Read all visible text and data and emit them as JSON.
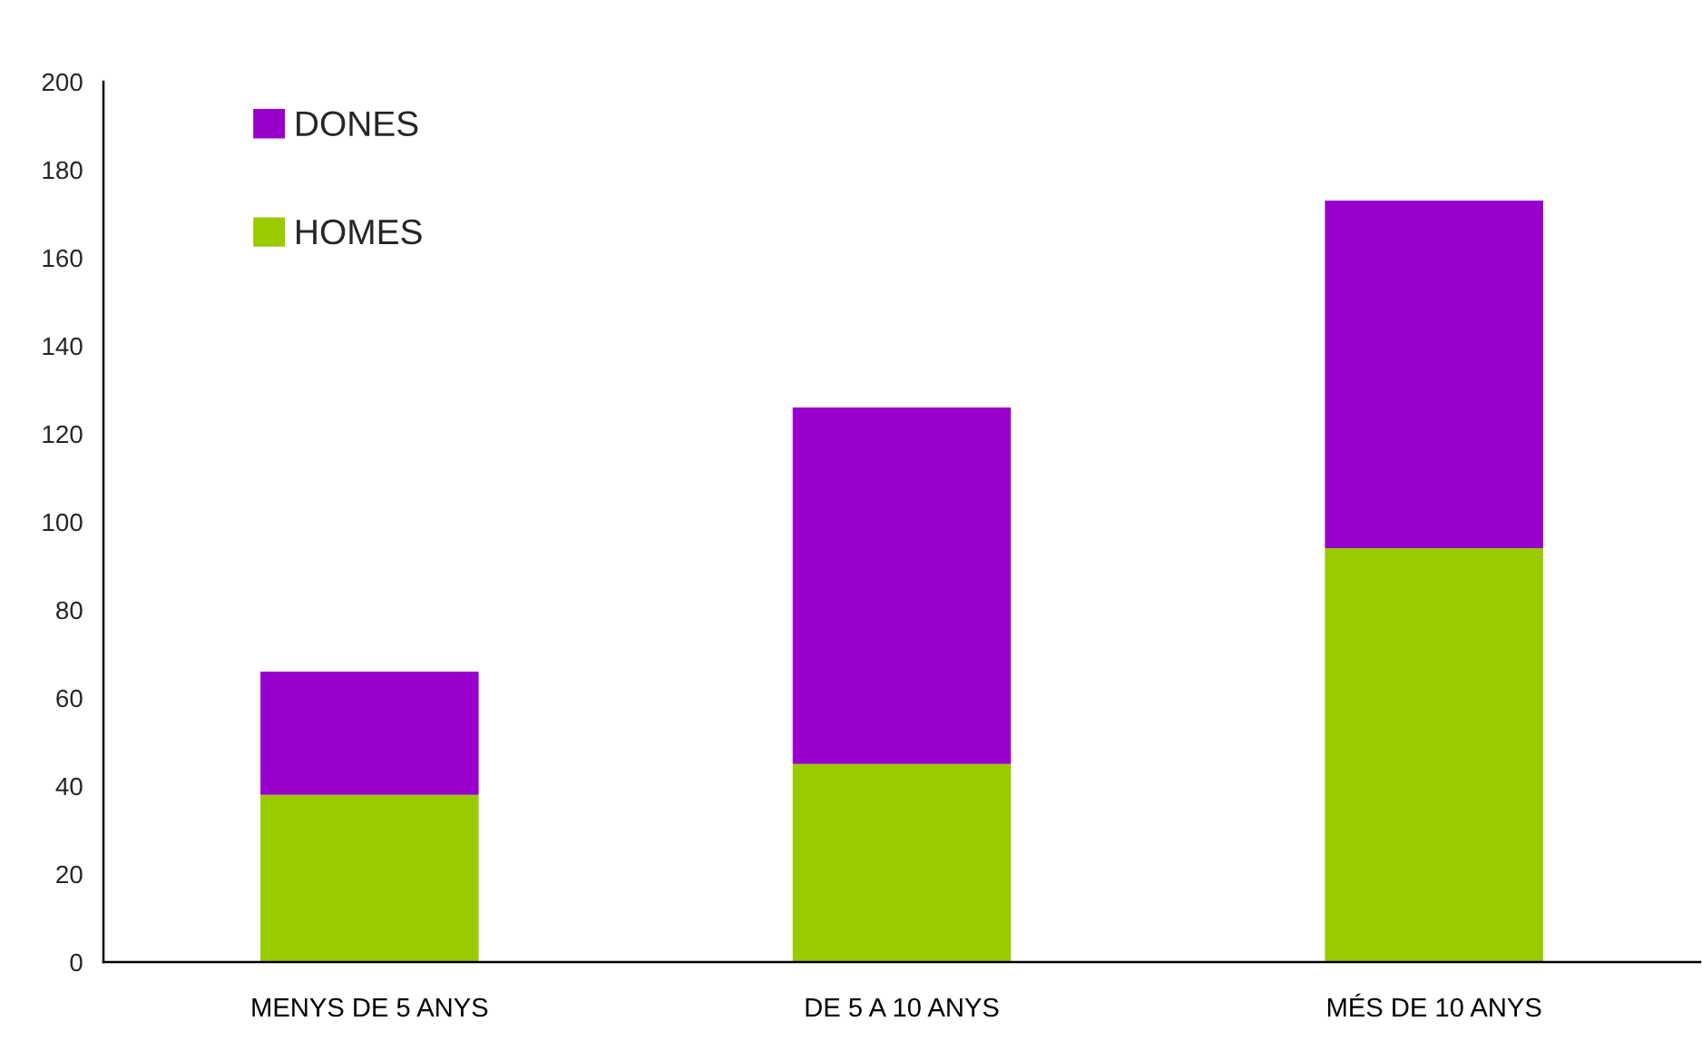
{
  "chart_data": {
    "type": "bar",
    "stacked": true,
    "categories": [
      "MENYS DE 5 ANYS",
      "DE 5 A 10 ANYS",
      "MÉS DE 10 ANYS"
    ],
    "series": [
      {
        "name": "HOMES",
        "color": "#99cc00",
        "values": [
          38,
          45,
          94
        ]
      },
      {
        "name": "DONES",
        "color": "#9900cc",
        "values": [
          28,
          81,
          79
        ]
      }
    ],
    "ylim": [
      0,
      200
    ],
    "yticks": [
      0,
      20,
      40,
      60,
      80,
      100,
      120,
      140,
      160,
      180,
      200
    ],
    "legend": "top left"
  }
}
